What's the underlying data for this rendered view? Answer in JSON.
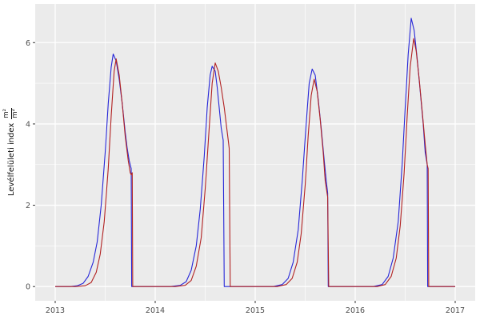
{
  "chart": {
    "ylabel_text": "Levélfelületi index",
    "ylabel_frac_num": "m²",
    "ylabel_frac_den": "m²"
  },
  "chart_data": {
    "type": "line",
    "title": "",
    "xlabel": "",
    "ylabel": "Levélfelületi index (m²/m²)",
    "legend": "none",
    "grid": "on",
    "panel_bg": "#ebebeb",
    "grid_major_color": "#ffffff",
    "grid_minor_color": "#ffffff",
    "tick_color": "#333333",
    "x_domain": [
      2012.8,
      2017.2
    ],
    "y_domain": [
      -0.35,
      6.95
    ],
    "x_major_ticks": [
      2013,
      2014,
      2015,
      2016,
      2017
    ],
    "x_tick_labels": [
      "2013",
      "2014",
      "2015",
      "2016",
      "2017"
    ],
    "x_minor_ticks": [
      2013.5,
      2014.5,
      2015.5,
      2016.5
    ],
    "y_major_ticks": [
      0,
      2,
      4,
      6
    ],
    "y_tick_labels": [
      "0",
      "2",
      "4",
      "6"
    ],
    "y_minor_ticks": [
      1,
      3,
      5
    ],
    "series": [
      {
        "name": "blue-line",
        "color": "#2626d8",
        "points": [
          [
            2013.0,
            0
          ],
          [
            2013.15,
            0
          ],
          [
            2013.22,
            0.02
          ],
          [
            2013.28,
            0.08
          ],
          [
            2013.33,
            0.25
          ],
          [
            2013.38,
            0.6
          ],
          [
            2013.42,
            1.1
          ],
          [
            2013.46,
            2.0
          ],
          [
            2013.5,
            3.3
          ],
          [
            2013.53,
            4.5
          ],
          [
            2013.56,
            5.4
          ],
          [
            2013.58,
            5.72
          ],
          [
            2013.61,
            5.55
          ],
          [
            2013.64,
            5.1
          ],
          [
            2013.67,
            4.5
          ],
          [
            2013.7,
            3.8
          ],
          [
            2013.72,
            3.4
          ],
          [
            2013.74,
            3.1
          ],
          [
            2013.76,
            2.9
          ],
          [
            2013.765,
            0
          ],
          [
            2013.85,
            0
          ],
          [
            2014.0,
            0
          ],
          [
            2014.15,
            0
          ],
          [
            2014.25,
            0.03
          ],
          [
            2014.31,
            0.12
          ],
          [
            2014.36,
            0.4
          ],
          [
            2014.41,
            1.0
          ],
          [
            2014.45,
            1.9
          ],
          [
            2014.49,
            3.2
          ],
          [
            2014.52,
            4.4
          ],
          [
            2014.55,
            5.2
          ],
          [
            2014.57,
            5.42
          ],
          [
            2014.6,
            5.3
          ],
          [
            2014.62,
            4.9
          ],
          [
            2014.64,
            4.4
          ],
          [
            2014.66,
            3.9
          ],
          [
            2014.68,
            3.6
          ],
          [
            2014.69,
            0
          ],
          [
            2014.8,
            0
          ],
          [
            2015.0,
            0
          ],
          [
            2015.18,
            0
          ],
          [
            2015.27,
            0.05
          ],
          [
            2015.33,
            0.2
          ],
          [
            2015.38,
            0.6
          ],
          [
            2015.43,
            1.4
          ],
          [
            2015.47,
            2.6
          ],
          [
            2015.51,
            4.0
          ],
          [
            2015.54,
            5.0
          ],
          [
            2015.57,
            5.35
          ],
          [
            2015.6,
            5.2
          ],
          [
            2015.63,
            4.6
          ],
          [
            2015.66,
            3.9
          ],
          [
            2015.69,
            3.1
          ],
          [
            2015.71,
            2.6
          ],
          [
            2015.725,
            2.3
          ],
          [
            2015.73,
            0
          ],
          [
            2015.85,
            0
          ],
          [
            2016.0,
            0
          ],
          [
            2016.18,
            0
          ],
          [
            2016.27,
            0.05
          ],
          [
            2016.33,
            0.25
          ],
          [
            2016.38,
            0.7
          ],
          [
            2016.43,
            1.6
          ],
          [
            2016.47,
            3.0
          ],
          [
            2016.5,
            4.4
          ],
          [
            2016.53,
            5.7
          ],
          [
            2016.56,
            6.6
          ],
          [
            2016.59,
            6.3
          ],
          [
            2016.62,
            5.6
          ],
          [
            2016.65,
            4.8
          ],
          [
            2016.68,
            4.0
          ],
          [
            2016.7,
            3.3
          ],
          [
            2016.72,
            3.0
          ],
          [
            2016.725,
            0
          ],
          [
            2016.85,
            0
          ],
          [
            2017.0,
            0
          ]
        ]
      },
      {
        "name": "red-line",
        "color": "#b22222",
        "points": [
          [
            2013.0,
            0
          ],
          [
            2013.2,
            0
          ],
          [
            2013.3,
            0.02
          ],
          [
            2013.36,
            0.1
          ],
          [
            2013.41,
            0.35
          ],
          [
            2013.45,
            0.8
          ],
          [
            2013.49,
            1.6
          ],
          [
            2013.53,
            2.9
          ],
          [
            2013.56,
            4.2
          ],
          [
            2013.59,
            5.3
          ],
          [
            2013.61,
            5.6
          ],
          [
            2013.64,
            5.2
          ],
          [
            2013.67,
            4.5
          ],
          [
            2013.7,
            3.7
          ],
          [
            2013.73,
            3.1
          ],
          [
            2013.75,
            2.8
          ],
          [
            2013.76,
            2.75
          ],
          [
            2013.77,
            2.8
          ],
          [
            2013.775,
            0
          ],
          [
            2013.9,
            0
          ],
          [
            2014.0,
            0
          ],
          [
            2014.2,
            0
          ],
          [
            2014.3,
            0.03
          ],
          [
            2014.36,
            0.15
          ],
          [
            2014.41,
            0.5
          ],
          [
            2014.46,
            1.2
          ],
          [
            2014.5,
            2.4
          ],
          [
            2014.54,
            3.9
          ],
          [
            2014.57,
            5.0
          ],
          [
            2014.6,
            5.5
          ],
          [
            2014.63,
            5.3
          ],
          [
            2014.66,
            4.9
          ],
          [
            2014.69,
            4.4
          ],
          [
            2014.71,
            4.0
          ],
          [
            2014.73,
            3.6
          ],
          [
            2014.74,
            3.4
          ],
          [
            2014.75,
            0
          ],
          [
            2014.9,
            0
          ],
          [
            2015.0,
            0
          ],
          [
            2015.22,
            0
          ],
          [
            2015.31,
            0.05
          ],
          [
            2015.37,
            0.2
          ],
          [
            2015.42,
            0.6
          ],
          [
            2015.46,
            1.3
          ],
          [
            2015.5,
            2.5
          ],
          [
            2015.53,
            3.7
          ],
          [
            2015.56,
            4.7
          ],
          [
            2015.59,
            5.1
          ],
          [
            2015.62,
            4.8
          ],
          [
            2015.65,
            4.1
          ],
          [
            2015.68,
            3.3
          ],
          [
            2015.7,
            2.6
          ],
          [
            2015.725,
            2.2
          ],
          [
            2015.735,
            0
          ],
          [
            2015.9,
            0
          ],
          [
            2016.0,
            0
          ],
          [
            2016.22,
            0
          ],
          [
            2016.3,
            0.05
          ],
          [
            2016.36,
            0.25
          ],
          [
            2016.41,
            0.7
          ],
          [
            2016.45,
            1.5
          ],
          [
            2016.49,
            2.8
          ],
          [
            2016.52,
            4.2
          ],
          [
            2016.55,
            5.4
          ],
          [
            2016.585,
            6.1
          ],
          [
            2016.61,
            5.8
          ],
          [
            2016.64,
            5.1
          ],
          [
            2016.67,
            4.3
          ],
          [
            2016.7,
            3.5
          ],
          [
            2016.72,
            3.0
          ],
          [
            2016.73,
            2.9
          ],
          [
            2016.735,
            0
          ],
          [
            2016.9,
            0
          ],
          [
            2017.0,
            0
          ]
        ]
      }
    ]
  }
}
